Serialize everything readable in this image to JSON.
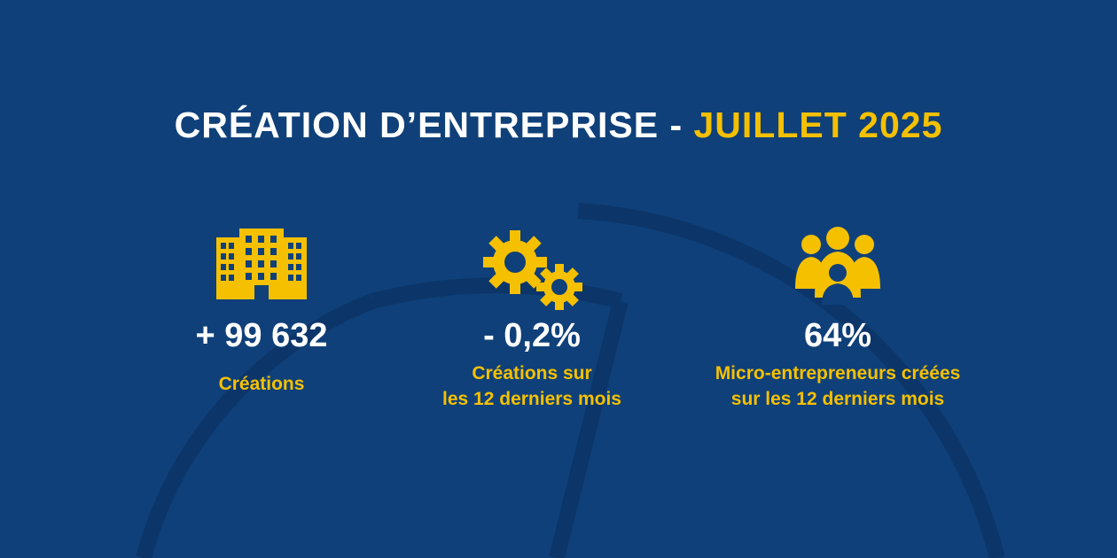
{
  "header": {
    "title_main": "CRÉATION D’ENTREPRISE - ",
    "title_accent": "JUILLET 2025"
  },
  "stats": [
    {
      "icon": "buildings-icon",
      "value": "+ 99 632",
      "label_lines": [
        "Créations"
      ]
    },
    {
      "icon": "gears-icon",
      "value": "- 0,2%",
      "label_lines": [
        "Créations sur",
        "les 12 derniers mois"
      ]
    },
    {
      "icon": "people-group-icon",
      "value": "64%",
      "label_lines": [
        "Micro-entrepreneurs créées",
        "sur les 12 derniers mois"
      ]
    }
  ],
  "colors": {
    "background": "#0f4079",
    "accent": "#f5c000",
    "text": "#ffffff",
    "decor": "#0c366a"
  }
}
